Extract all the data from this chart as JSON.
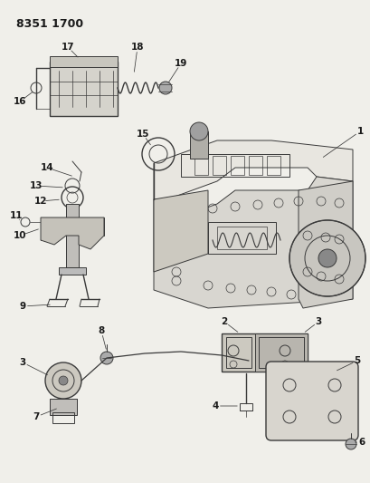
{
  "title": "8351 1700",
  "bg_color": "#f0efea",
  "line_color": "#3a3a3a",
  "label_color": "#1a1a1a",
  "figsize": [
    4.1,
    5.33
  ],
  "dpi": 100
}
